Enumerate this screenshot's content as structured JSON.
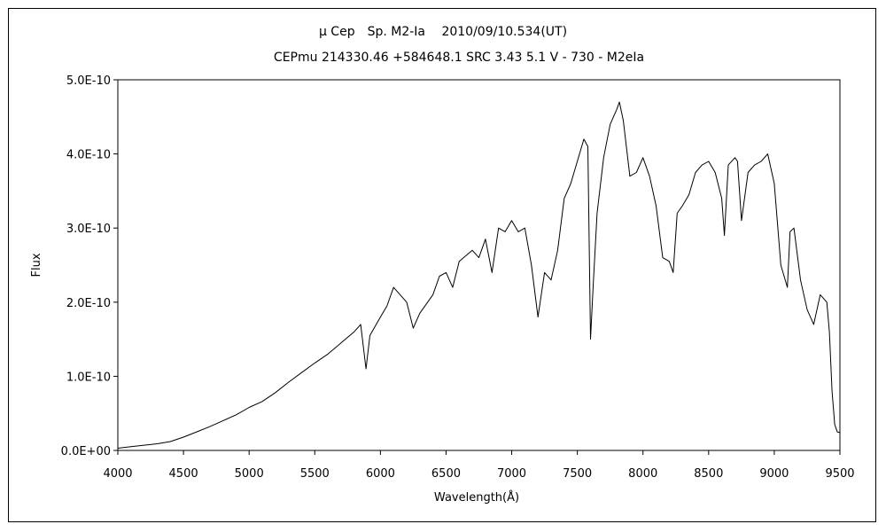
{
  "chart_data": {
    "type": "line",
    "title": "μ Cep　Sp. M2-Ia　 2010/09/10.534(UT)",
    "subtitle": "CEPmu 214330.46 +584648.1 SRC 3.43 5.1 V - 730 - M2eIa",
    "xlabel": "Wavelength(Å)",
    "ylabel": "Flux",
    "xlim": [
      4000,
      9500
    ],
    "ylim": [
      0,
      5e-10
    ],
    "x_ticks": [
      4000,
      4500,
      5000,
      5500,
      6000,
      6500,
      7000,
      7500,
      8000,
      8500,
      9000,
      9500
    ],
    "y_ticks": [
      {
        "value": 0,
        "label": "0.0E+00"
      },
      {
        "value": 1e-10,
        "label": "1.0E-10"
      },
      {
        "value": 2e-10,
        "label": "2.0E-10"
      },
      {
        "value": 3e-10,
        "label": "3.0E-10"
      },
      {
        "value": 4e-10,
        "label": "4.0E-10"
      },
      {
        "value": 5e-10,
        "label": "5.0E-10"
      }
    ],
    "grid": false,
    "series": [
      {
        "color": "#000000",
        "x": [
          4000,
          4100,
          4200,
          4300,
          4400,
          4500,
          4600,
          4700,
          4800,
          4900,
          5000,
          5100,
          5200,
          5300,
          5400,
          5500,
          5600,
          5700,
          5800,
          5850,
          5890,
          5920,
          6000,
          6050,
          6100,
          6200,
          6250,
          6300,
          6400,
          6450,
          6500,
          6550,
          6600,
          6700,
          6750,
          6800,
          6850,
          6900,
          6950,
          7000,
          7050,
          7100,
          7150,
          7200,
          7250,
          7300,
          7350,
          7400,
          7450,
          7500,
          7550,
          7580,
          7600,
          7620,
          7650,
          7700,
          7750,
          7800,
          7820,
          7850,
          7900,
          7950,
          8000,
          8050,
          8100,
          8150,
          8200,
          8230,
          8260,
          8300,
          8350,
          8400,
          8450,
          8500,
          8550,
          8600,
          8620,
          8650,
          8700,
          8720,
          8750,
          8800,
          8850,
          8900,
          8950,
          9000,
          9050,
          9100,
          9120,
          9150,
          9200,
          9250,
          9300,
          9350,
          9400,
          9420,
          9440,
          9460,
          9480,
          9500
        ],
        "values": [
          3e-12,
          5e-12,
          7e-12,
          9e-12,
          1.2e-11,
          1.8e-11,
          2.5e-11,
          3.2e-11,
          4e-11,
          4.8e-11,
          5.8e-11,
          6.6e-11,
          7.8e-11,
          9.2e-11,
          1.05e-10,
          1.18e-10,
          1.3e-10,
          1.45e-10,
          1.6e-10,
          1.7e-10,
          1.1e-10,
          1.55e-10,
          1.8e-10,
          1.95e-10,
          2.2e-10,
          2e-10,
          1.65e-10,
          1.85e-10,
          2.1e-10,
          2.35e-10,
          2.4e-10,
          2.2e-10,
          2.55e-10,
          2.7e-10,
          2.6e-10,
          2.85e-10,
          2.4e-10,
          3e-10,
          2.95e-10,
          3.1e-10,
          2.95e-10,
          3e-10,
          2.5e-10,
          1.8e-10,
          2.4e-10,
          2.3e-10,
          2.7e-10,
          3.4e-10,
          3.6e-10,
          3.9e-10,
          4.2e-10,
          4.1e-10,
          1.5e-10,
          2.2e-10,
          3.2e-10,
          3.95e-10,
          4.4e-10,
          4.6e-10,
          4.7e-10,
          4.45e-10,
          3.7e-10,
          3.75e-10,
          3.95e-10,
          3.7e-10,
          3.3e-10,
          2.6e-10,
          2.55e-10,
          2.4e-10,
          3.2e-10,
          3.3e-10,
          3.45e-10,
          3.75e-10,
          3.85e-10,
          3.9e-10,
          3.75e-10,
          3.4e-10,
          2.9e-10,
          3.85e-10,
          3.95e-10,
          3.9e-10,
          3.1e-10,
          3.75e-10,
          3.85e-10,
          3.9e-10,
          4e-10,
          3.6e-10,
          2.5e-10,
          2.2e-10,
          2.95e-10,
          3e-10,
          2.3e-10,
          1.9e-10,
          1.7e-10,
          2.1e-10,
          2e-10,
          1.6e-10,
          8e-11,
          3.5e-11,
          2.5e-11,
          2.4e-11
        ]
      }
    ]
  }
}
